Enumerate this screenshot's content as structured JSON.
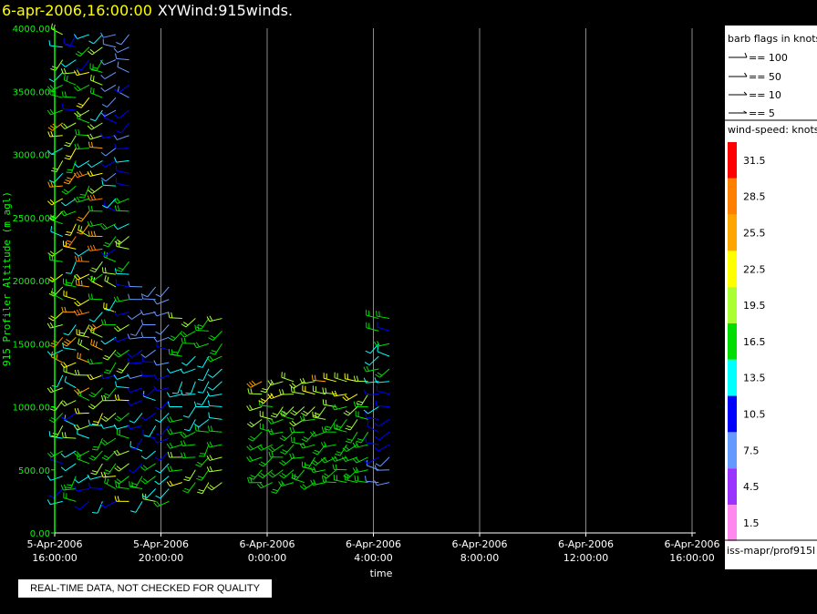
{
  "header": {
    "datetime": "6-apr-2006,16:00:00",
    "title": "XYWind:915winds."
  },
  "quality_notice": "REAL-TIME DATA, NOT CHECKED FOR QUALITY",
  "legend": {
    "barb_title": "barb flags in knots",
    "barbs": [
      {
        "label": "== 100"
      },
      {
        "label": "== 50"
      },
      {
        "label": "== 10"
      },
      {
        "label": "== 5"
      }
    ],
    "speed_title": "wind-speed: knots",
    "speed_scale": [
      {
        "label": "31.5",
        "color": "#ff0000"
      },
      {
        "label": "28.5",
        "color": "#ff8000"
      },
      {
        "label": "25.5",
        "color": "#ffa500"
      },
      {
        "label": "22.5",
        "color": "#ffff00"
      },
      {
        "label": "19.5",
        "color": "#aaff33"
      },
      {
        "label": "16.5",
        "color": "#00dd00"
      },
      {
        "label": "13.5",
        "color": "#00ffff"
      },
      {
        "label": "10.5",
        "color": "#0000ff"
      },
      {
        "label": "7.5",
        "color": "#6699ff"
      },
      {
        "label": "4.5",
        "color": "#9933ff"
      },
      {
        "label": "1.5",
        "color": "#ff88ee"
      }
    ],
    "footer": "iss-mapr/prof915l"
  },
  "chart_data": {
    "type": "scatter",
    "xlabel": "time",
    "ylabel": "915 Profiler Altitude (m agl)",
    "x_ticks": [
      {
        "line1": "5-Apr-2006",
        "line2": "16:00:00"
      },
      {
        "line1": "5-Apr-2006",
        "line2": "20:00:00"
      },
      {
        "line1": "6-Apr-2006",
        "line2": "0:00:00"
      },
      {
        "line1": "6-Apr-2006",
        "line2": "4:00:00"
      },
      {
        "line1": "6-Apr-2006",
        "line2": "8:00:00"
      },
      {
        "line1": "6-Apr-2006",
        "line2": "12:00:00"
      },
      {
        "line1": "6-Apr-2006",
        "line2": "16:00:00"
      }
    ],
    "xlim_hours": [
      0,
      24
    ],
    "ylim": [
      0,
      4000
    ],
    "y_ticks": [
      "0.00",
      "500.00",
      "1000.00",
      "1500.00",
      "2000.00",
      "2500.00",
      "3000.00",
      "3500.00",
      "4000.00"
    ],
    "grid": true,
    "axis_color": "#00ff00",
    "line_color": "#ffffff",
    "series": [
      {
        "group": "early-a",
        "hours": [
          0.3,
          0.8,
          1.3,
          1.8
        ],
        "alt_range": [
          250,
          4000
        ],
        "speed_range": [
          6,
          30
        ],
        "dir_range": [
          200,
          300
        ]
      },
      {
        "group": "early-b",
        "hours": [
          2.3,
          2.8
        ],
        "alt_range": [
          250,
          4000
        ],
        "speed_range": [
          6,
          24
        ],
        "dir_range": [
          210,
          300
        ]
      },
      {
        "group": "early-c",
        "hours": [
          3.3,
          3.8,
          4.3
        ],
        "alt_range": [
          250,
          2000
        ],
        "speed_range": [
          8,
          20
        ],
        "dir_range": [
          210,
          290
        ]
      },
      {
        "group": "early-d",
        "hours": [
          4.8,
          5.3,
          5.8,
          6.3
        ],
        "alt_range": [
          400,
          1700
        ],
        "speed_range": [
          14,
          31
        ],
        "dir_range": [
          200,
          280
        ]
      },
      {
        "group": "night",
        "hours": [
          7.8,
          8.2,
          8.6,
          9.0,
          9.4,
          9.8,
          10.2,
          10.6,
          11.0,
          11.4,
          11.8
        ],
        "alt_range": [
          400,
          1200
        ],
        "speed_range": [
          15,
          28
        ],
        "dir_range": [
          210,
          290
        ]
      },
      {
        "group": "late",
        "hours": [
          12.2,
          12.6
        ],
        "alt_range": [
          400,
          1700
        ],
        "speed_range": [
          8,
          18
        ],
        "dir_range": [
          220,
          300
        ]
      }
    ]
  }
}
